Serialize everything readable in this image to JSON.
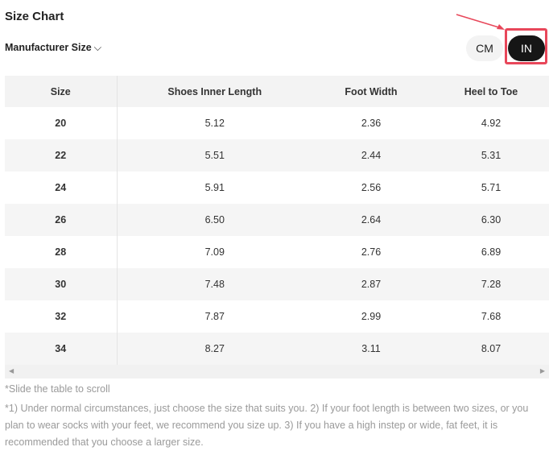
{
  "title": "Size Chart",
  "size_system": "Manufacturer Size",
  "units": {
    "cm": "CM",
    "in": "IN",
    "selected": "IN"
  },
  "table": {
    "headers": [
      "Size",
      "Shoes Inner Length",
      "Foot Width",
      "Heel to Toe"
    ],
    "rows": [
      [
        "20",
        "5.12",
        "2.36",
        "4.92"
      ],
      [
        "22",
        "5.51",
        "2.44",
        "5.31"
      ],
      [
        "24",
        "5.91",
        "2.56",
        "5.71"
      ],
      [
        "26",
        "6.50",
        "2.64",
        "6.30"
      ],
      [
        "28",
        "7.09",
        "2.76",
        "6.89"
      ],
      [
        "30",
        "7.48",
        "2.87",
        "7.28"
      ],
      [
        "32",
        "7.87",
        "2.99",
        "7.68"
      ],
      [
        "34",
        "8.27",
        "3.11",
        "8.07"
      ]
    ]
  },
  "scroll_hint": "*Slide the table to scroll",
  "note": "*1) Under normal circumstances, just choose the size that suits you. 2) If your foot length is between two sizes, or you plan to wear socks with your feet, we recommend you size up. 3) If you have a high instep or wide, fat feet, it is recommended that you choose a larger size.",
  "colors": {
    "annotation": "#e8475a",
    "selected_unit_bg": "#161616"
  }
}
